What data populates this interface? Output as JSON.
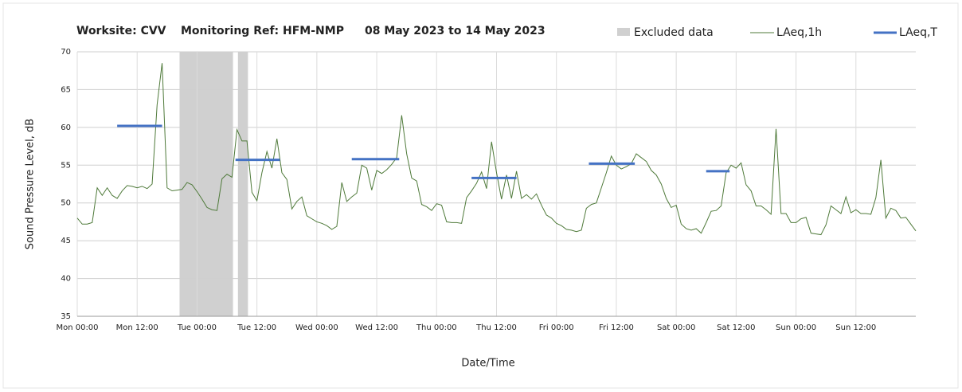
{
  "chart_data": {
    "type": "line",
    "title_parts": [
      "Worksite: CVV",
      "Monitoring Ref: HFM-NMP",
      "08 May 2023 to 14 May 2023"
    ],
    "x_label": "Date/Time",
    "y_label": "Sound Pressure Level, dB",
    "xlim": [
      0,
      168
    ],
    "xticks": [
      {
        "value": 0,
        "label": "Mon 00:00"
      },
      {
        "value": 12,
        "label": "Mon 12:00"
      },
      {
        "value": 24,
        "label": "Tue 00:00"
      },
      {
        "value": 36,
        "label": "Tue 12:00"
      },
      {
        "value": 48,
        "label": "Wed 00:00"
      },
      {
        "value": 60,
        "label": "Wed 12:00"
      },
      {
        "value": 72,
        "label": "Thu 00:00"
      },
      {
        "value": 84,
        "label": "Thu 12:00"
      },
      {
        "value": 96,
        "label": "Fri 00:00"
      },
      {
        "value": 108,
        "label": "Fri 12:00"
      },
      {
        "value": 120,
        "label": "Sat 00:00"
      },
      {
        "value": 132,
        "label": "Sat 12:00"
      },
      {
        "value": 144,
        "label": "Sun 00:00"
      },
      {
        "value": 156,
        "label": "Sun 12:00"
      }
    ],
    "ylim": [
      35,
      70
    ],
    "yticks": [
      35,
      40,
      45,
      50,
      55,
      60,
      65,
      70
    ],
    "grid": true,
    "excluded": {
      "name": "Excluded data",
      "color": "#d0d0d0",
      "ranges": [
        [
          20.5,
          31.2
        ],
        [
          32.2,
          34.2
        ]
      ]
    },
    "series": [
      {
        "name": "LAeq,1h",
        "color": "#4f7a3a",
        "x": [
          0,
          1,
          2,
          3,
          4,
          5,
          6,
          7,
          8,
          9,
          10,
          11,
          12,
          13,
          14,
          15,
          16,
          17,
          18,
          19,
          20,
          21,
          22,
          23,
          24,
          25,
          26,
          27,
          28,
          29,
          30,
          31,
          32,
          33,
          34,
          35,
          36,
          37,
          38,
          39,
          40,
          41,
          42,
          43,
          44,
          45,
          46,
          47,
          48,
          49,
          50,
          51,
          52,
          53,
          54,
          55,
          56,
          57,
          58,
          59,
          60,
          61,
          62,
          63,
          64,
          65,
          66,
          67,
          68,
          69,
          70,
          71,
          72,
          73,
          74,
          75,
          76,
          77,
          78,
          79,
          80,
          81,
          82,
          83,
          84,
          85,
          86,
          87,
          88,
          89,
          90,
          91,
          92,
          93,
          94,
          95,
          96,
          97,
          98,
          99,
          100,
          101,
          102,
          103,
          104,
          105,
          106,
          107,
          108,
          109,
          110,
          111,
          112,
          113,
          114,
          115,
          116,
          117,
          118,
          119,
          120,
          121,
          122,
          123,
          124,
          125,
          126,
          127,
          128,
          129,
          130,
          131,
          132,
          133,
          134,
          135,
          136,
          137,
          138,
          139,
          140,
          141,
          142,
          143,
          144,
          145,
          146,
          147,
          148,
          149,
          150,
          151,
          152,
          153,
          154,
          155,
          156,
          157,
          158,
          159,
          160,
          161,
          162,
          163,
          164,
          165,
          166,
          167,
          168
        ],
        "values": [
          48,
          47.2,
          47.2,
          47.4,
          52,
          51,
          52,
          51,
          50.6,
          51.6,
          52.3,
          52.2,
          52,
          52.2,
          51.9,
          52.5,
          63,
          68.5,
          52,
          51.6,
          51.7,
          51.8,
          52.7,
          52.4,
          51.5,
          50.5,
          49.4,
          49.1,
          49,
          53.2,
          53.8,
          53.4,
          59.7,
          58.2,
          58.2,
          51.4,
          50.3,
          54,
          56.8,
          54.6,
          58.5,
          54,
          53.1,
          49.2,
          50.2,
          50.8,
          48.3,
          47.9,
          47.5,
          47.3,
          47,
          46.5,
          46.9,
          52.7,
          50.2,
          50.8,
          51.3,
          55,
          54.6,
          51.7,
          54.3,
          53.9,
          54.4,
          55.1,
          56,
          61.6,
          56.5,
          53.3,
          52.9,
          49.8,
          49.5,
          49,
          49.9,
          49.7,
          47.5,
          47.4,
          47.4,
          47.3,
          50.7,
          51.6,
          52.6,
          54.1,
          51.9,
          58.1,
          54,
          50.5,
          53.7,
          50.6,
          54.2,
          50.6,
          51.1,
          50.5,
          51.2,
          49.7,
          48.4,
          48,
          47.3,
          47,
          46.5,
          46.4,
          46.2,
          46.4,
          49.3,
          49.8,
          50,
          52,
          54,
          56.2,
          55,
          54.5,
          54.8,
          55.2,
          56.5,
          56,
          55.5,
          54.3,
          53.7,
          52.5,
          50.6,
          49.4,
          49.7,
          47.2,
          46.6,
          46.4,
          46.6,
          46,
          47.4,
          48.9,
          49,
          49.6,
          54,
          55,
          54.6,
          55.3,
          52.4,
          51.6,
          49.6,
          49.6,
          49.1,
          48.5,
          59.8,
          48.6,
          48.6,
          47.4,
          47.4,
          47.9,
          48.1,
          46,
          45.9,
          45.8,
          47.1,
          49.6,
          49.1,
          48.6,
          50.8,
          48.7,
          49.1,
          48.6,
          48.6,
          48.5,
          50.7,
          55.7,
          48,
          49.3,
          49,
          48,
          48.1,
          47.2,
          46.3
        ]
      }
    ],
    "periods": {
      "name": "LAeq,T",
      "color": "#4472c4",
      "segments": [
        {
          "start": 8,
          "end": 17,
          "value": 60.2
        },
        {
          "start": 31.7,
          "end": 40.6,
          "value": 55.7
        },
        {
          "start": 55,
          "end": 64.5,
          "value": 55.8
        },
        {
          "start": 79,
          "end": 88,
          "value": 53.3
        },
        {
          "start": 102.5,
          "end": 111.7,
          "value": 55.2
        },
        {
          "start": 126,
          "end": 130.7,
          "value": 54.2
        }
      ]
    }
  }
}
